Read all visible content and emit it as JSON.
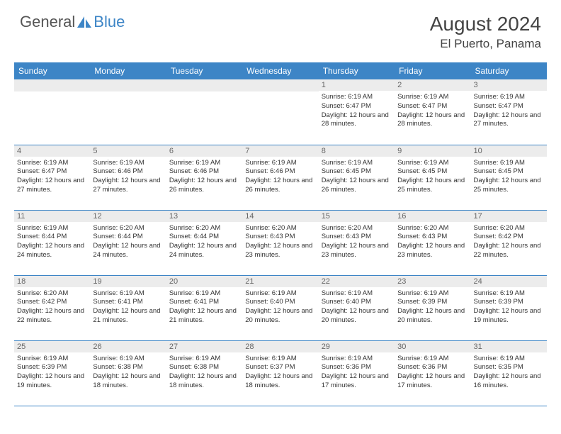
{
  "logo": {
    "general": "General",
    "blue": "Blue"
  },
  "title": "August 2024",
  "location": "El Puerto, Panama",
  "colors": {
    "header_bg": "#3d85c6",
    "header_text": "#ffffff",
    "day_number_bg": "#ececec",
    "day_number_text": "#666666",
    "cell_text": "#333333",
    "border": "#3d85c6",
    "logo_gray": "#555555",
    "logo_blue": "#3d85c6",
    "background": "#ffffff"
  },
  "typography": {
    "title_fontsize": 28,
    "location_fontsize": 17,
    "header_fontsize": 12,
    "daynum_fontsize": 11,
    "cell_fontsize": 9.5
  },
  "weekdays": [
    "Sunday",
    "Monday",
    "Tuesday",
    "Wednesday",
    "Thursday",
    "Friday",
    "Saturday"
  ],
  "weeks": [
    [
      {
        "n": "",
        "sr": "",
        "ss": "",
        "dl": ""
      },
      {
        "n": "",
        "sr": "",
        "ss": "",
        "dl": ""
      },
      {
        "n": "",
        "sr": "",
        "ss": "",
        "dl": ""
      },
      {
        "n": "",
        "sr": "",
        "ss": "",
        "dl": ""
      },
      {
        "n": "1",
        "sr": "Sunrise: 6:19 AM",
        "ss": "Sunset: 6:47 PM",
        "dl": "Daylight: 12 hours and 28 minutes."
      },
      {
        "n": "2",
        "sr": "Sunrise: 6:19 AM",
        "ss": "Sunset: 6:47 PM",
        "dl": "Daylight: 12 hours and 28 minutes."
      },
      {
        "n": "3",
        "sr": "Sunrise: 6:19 AM",
        "ss": "Sunset: 6:47 PM",
        "dl": "Daylight: 12 hours and 27 minutes."
      }
    ],
    [
      {
        "n": "4",
        "sr": "Sunrise: 6:19 AM",
        "ss": "Sunset: 6:47 PM",
        "dl": "Daylight: 12 hours and 27 minutes."
      },
      {
        "n": "5",
        "sr": "Sunrise: 6:19 AM",
        "ss": "Sunset: 6:46 PM",
        "dl": "Daylight: 12 hours and 27 minutes."
      },
      {
        "n": "6",
        "sr": "Sunrise: 6:19 AM",
        "ss": "Sunset: 6:46 PM",
        "dl": "Daylight: 12 hours and 26 minutes."
      },
      {
        "n": "7",
        "sr": "Sunrise: 6:19 AM",
        "ss": "Sunset: 6:46 PM",
        "dl": "Daylight: 12 hours and 26 minutes."
      },
      {
        "n": "8",
        "sr": "Sunrise: 6:19 AM",
        "ss": "Sunset: 6:45 PM",
        "dl": "Daylight: 12 hours and 26 minutes."
      },
      {
        "n": "9",
        "sr": "Sunrise: 6:19 AM",
        "ss": "Sunset: 6:45 PM",
        "dl": "Daylight: 12 hours and 25 minutes."
      },
      {
        "n": "10",
        "sr": "Sunrise: 6:19 AM",
        "ss": "Sunset: 6:45 PM",
        "dl": "Daylight: 12 hours and 25 minutes."
      }
    ],
    [
      {
        "n": "11",
        "sr": "Sunrise: 6:19 AM",
        "ss": "Sunset: 6:44 PM",
        "dl": "Daylight: 12 hours and 24 minutes."
      },
      {
        "n": "12",
        "sr": "Sunrise: 6:20 AM",
        "ss": "Sunset: 6:44 PM",
        "dl": "Daylight: 12 hours and 24 minutes."
      },
      {
        "n": "13",
        "sr": "Sunrise: 6:20 AM",
        "ss": "Sunset: 6:44 PM",
        "dl": "Daylight: 12 hours and 24 minutes."
      },
      {
        "n": "14",
        "sr": "Sunrise: 6:20 AM",
        "ss": "Sunset: 6:43 PM",
        "dl": "Daylight: 12 hours and 23 minutes."
      },
      {
        "n": "15",
        "sr": "Sunrise: 6:20 AM",
        "ss": "Sunset: 6:43 PM",
        "dl": "Daylight: 12 hours and 23 minutes."
      },
      {
        "n": "16",
        "sr": "Sunrise: 6:20 AM",
        "ss": "Sunset: 6:43 PM",
        "dl": "Daylight: 12 hours and 23 minutes."
      },
      {
        "n": "17",
        "sr": "Sunrise: 6:20 AM",
        "ss": "Sunset: 6:42 PM",
        "dl": "Daylight: 12 hours and 22 minutes."
      }
    ],
    [
      {
        "n": "18",
        "sr": "Sunrise: 6:20 AM",
        "ss": "Sunset: 6:42 PM",
        "dl": "Daylight: 12 hours and 22 minutes."
      },
      {
        "n": "19",
        "sr": "Sunrise: 6:19 AM",
        "ss": "Sunset: 6:41 PM",
        "dl": "Daylight: 12 hours and 21 minutes."
      },
      {
        "n": "20",
        "sr": "Sunrise: 6:19 AM",
        "ss": "Sunset: 6:41 PM",
        "dl": "Daylight: 12 hours and 21 minutes."
      },
      {
        "n": "21",
        "sr": "Sunrise: 6:19 AM",
        "ss": "Sunset: 6:40 PM",
        "dl": "Daylight: 12 hours and 20 minutes."
      },
      {
        "n": "22",
        "sr": "Sunrise: 6:19 AM",
        "ss": "Sunset: 6:40 PM",
        "dl": "Daylight: 12 hours and 20 minutes."
      },
      {
        "n": "23",
        "sr": "Sunrise: 6:19 AM",
        "ss": "Sunset: 6:39 PM",
        "dl": "Daylight: 12 hours and 20 minutes."
      },
      {
        "n": "24",
        "sr": "Sunrise: 6:19 AM",
        "ss": "Sunset: 6:39 PM",
        "dl": "Daylight: 12 hours and 19 minutes."
      }
    ],
    [
      {
        "n": "25",
        "sr": "Sunrise: 6:19 AM",
        "ss": "Sunset: 6:39 PM",
        "dl": "Daylight: 12 hours and 19 minutes."
      },
      {
        "n": "26",
        "sr": "Sunrise: 6:19 AM",
        "ss": "Sunset: 6:38 PM",
        "dl": "Daylight: 12 hours and 18 minutes."
      },
      {
        "n": "27",
        "sr": "Sunrise: 6:19 AM",
        "ss": "Sunset: 6:38 PM",
        "dl": "Daylight: 12 hours and 18 minutes."
      },
      {
        "n": "28",
        "sr": "Sunrise: 6:19 AM",
        "ss": "Sunset: 6:37 PM",
        "dl": "Daylight: 12 hours and 18 minutes."
      },
      {
        "n": "29",
        "sr": "Sunrise: 6:19 AM",
        "ss": "Sunset: 6:36 PM",
        "dl": "Daylight: 12 hours and 17 minutes."
      },
      {
        "n": "30",
        "sr": "Sunrise: 6:19 AM",
        "ss": "Sunset: 6:36 PM",
        "dl": "Daylight: 12 hours and 17 minutes."
      },
      {
        "n": "31",
        "sr": "Sunrise: 6:19 AM",
        "ss": "Sunset: 6:35 PM",
        "dl": "Daylight: 12 hours and 16 minutes."
      }
    ]
  ]
}
